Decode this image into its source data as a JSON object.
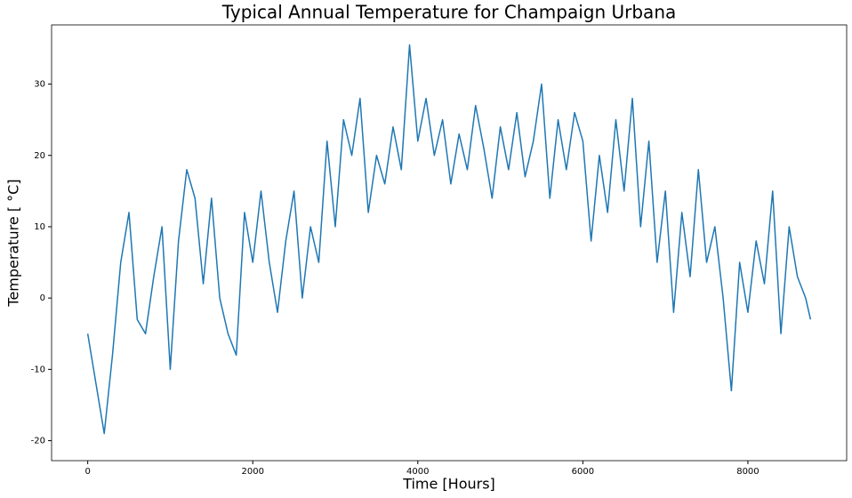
{
  "chart_data": {
    "type": "line",
    "title": "Typical Annual Temperature for Champaign Urbana",
    "xlabel": "Time [Hours]",
    "ylabel": "Temperature [ °C]",
    "x": [
      0,
      100,
      200,
      300,
      400,
      500,
      600,
      700,
      800,
      900,
      1000,
      1100,
      1200,
      1300,
      1400,
      1500,
      1600,
      1700,
      1800,
      1900,
      2000,
      2100,
      2200,
      2300,
      2400,
      2500,
      2600,
      2700,
      2800,
      2900,
      3000,
      3100,
      3200,
      3300,
      3400,
      3500,
      3600,
      3700,
      3800,
      3900,
      4000,
      4100,
      4200,
      4300,
      4400,
      4500,
      4600,
      4700,
      4800,
      4900,
      5000,
      5100,
      5200,
      5300,
      5400,
      5500,
      5600,
      5700,
      5800,
      5900,
      6000,
      6100,
      6200,
      6300,
      6400,
      6500,
      6600,
      6700,
      6800,
      6900,
      7000,
      7100,
      7200,
      7300,
      7400,
      7500,
      7600,
      7700,
      7800,
      7900,
      8000,
      8100,
      8200,
      8300,
      8400,
      8500,
      8600,
      8700,
      8759
    ],
    "series": [
      {
        "color": "#1f77b4",
        "values": [
          -5,
          -12,
          -19,
          -8,
          5,
          12,
          -3,
          -5,
          3,
          10,
          -10,
          8,
          18,
          14,
          2,
          14,
          0,
          -5,
          -8,
          12,
          5,
          15,
          5,
          -2,
          8,
          15,
          0,
          10,
          5,
          22,
          10,
          25,
          20,
          28,
          12,
          20,
          16,
          24,
          18,
          35.5,
          22,
          28,
          20,
          25,
          16,
          23,
          18,
          27,
          21,
          14,
          24,
          18,
          26,
          17,
          22,
          30,
          14,
          25,
          18,
          26,
          22,
          8,
          20,
          12,
          25,
          15,
          28,
          10,
          22,
          5,
          15,
          -2,
          12,
          3,
          18,
          5,
          10,
          0,
          -13,
          5,
          -2,
          8,
          2,
          15,
          -5,
          10,
          3,
          0,
          -3
        ]
      }
    ],
    "xlim": [
      -438,
      9197
    ],
    "ylim": [
      -22.8,
      38.3
    ],
    "xticks": [
      0,
      2000,
      4000,
      6000,
      8000
    ],
    "yticks": [
      -20,
      -10,
      0,
      10,
      20,
      30
    ],
    "grid": false
  }
}
